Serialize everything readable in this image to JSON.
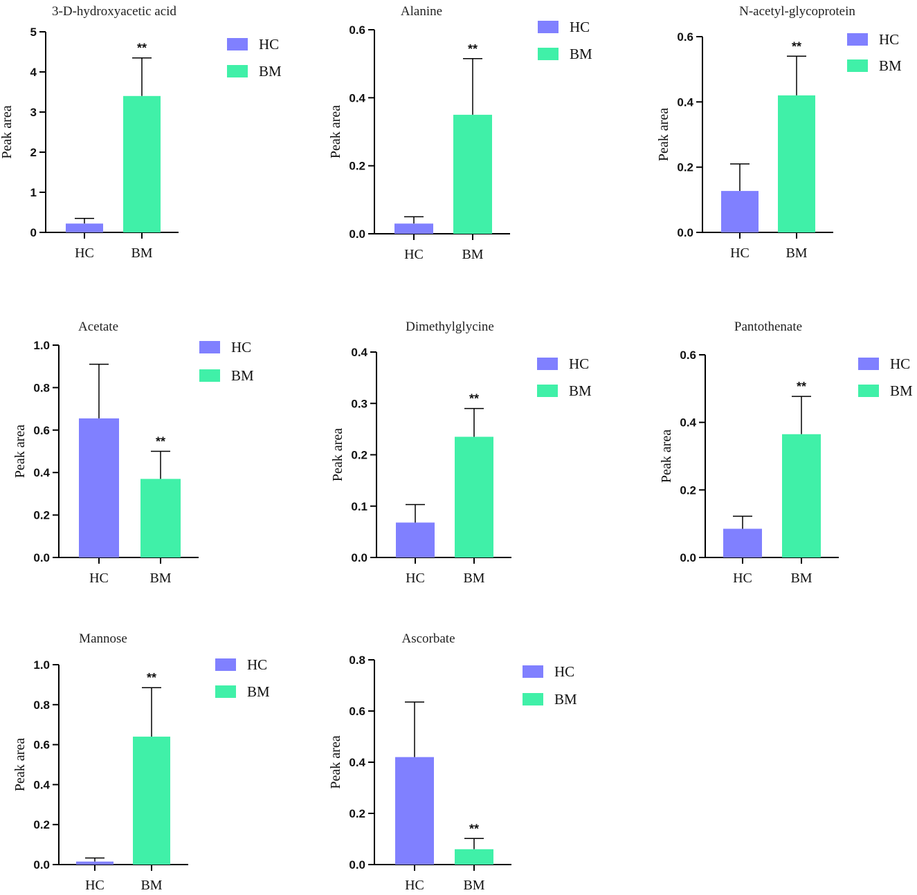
{
  "colors": {
    "HC": "#8080ff",
    "BM": "#40f0a8",
    "axis": "#000000"
  },
  "chart_data": [
    {
      "type": "bar",
      "title": "3-D-hydroxyacetic acid",
      "ylabel": "Peak area",
      "categories": [
        "HC",
        "BM"
      ],
      "values": [
        0.22,
        3.4
      ],
      "errors": [
        0.13,
        0.95
      ],
      "significance": [
        "",
        "**"
      ],
      "ylim": [
        0,
        5
      ],
      "yticks": [
        "0",
        "1",
        "2",
        "3",
        "4",
        "5"
      ],
      "legend": [
        "HC",
        "BM"
      ]
    },
    {
      "type": "bar",
      "title": "Alanine",
      "ylabel": "Peak area",
      "categories": [
        "HC",
        "BM"
      ],
      "values": [
        0.03,
        0.35
      ],
      "errors": [
        0.02,
        0.165
      ],
      "significance": [
        "",
        "**"
      ],
      "ylim": [
        0,
        0.6
      ],
      "yticks": [
        "0.0",
        "0.2",
        "0.4",
        "0.6"
      ],
      "legend": [
        "HC",
        "BM"
      ]
    },
    {
      "type": "bar",
      "title": "N-acetyl-glycoprotein",
      "ylabel": "Peak area",
      "categories": [
        "HC",
        "BM"
      ],
      "values": [
        0.127,
        0.42
      ],
      "errors": [
        0.083,
        0.12
      ],
      "significance": [
        "",
        "**"
      ],
      "ylim": [
        0,
        0.6
      ],
      "yticks": [
        "0.0",
        "0.2",
        "0.4",
        "0.6"
      ],
      "legend": [
        "HC",
        "BM"
      ]
    },
    {
      "type": "bar",
      "title": "Acetate",
      "ylabel": "Peak area",
      "categories": [
        "HC",
        "BM"
      ],
      "values": [
        0.655,
        0.37
      ],
      "errors": [
        0.255,
        0.13
      ],
      "significance": [
        "",
        "**"
      ],
      "ylim": [
        0,
        1.0
      ],
      "yticks": [
        "0.0",
        "0.2",
        "0.4",
        "0.6",
        "0.8",
        "1.0"
      ],
      "legend": [
        "HC",
        "BM"
      ]
    },
    {
      "type": "bar",
      "title": "Dimethylglycine",
      "ylabel": "Peak area",
      "categories": [
        "HC",
        "BM"
      ],
      "values": [
        0.068,
        0.235
      ],
      "errors": [
        0.035,
        0.055
      ],
      "significance": [
        "",
        "**"
      ],
      "ylim": [
        0,
        0.4
      ],
      "yticks": [
        "0.0",
        "0.1",
        "0.2",
        "0.3",
        "0.4"
      ],
      "legend": [
        "HC",
        "BM"
      ]
    },
    {
      "type": "bar",
      "title": "Pantothenate",
      "ylabel": "Peak area",
      "categories": [
        "HC",
        "BM"
      ],
      "values": [
        0.085,
        0.365
      ],
      "errors": [
        0.037,
        0.112
      ],
      "significance": [
        "",
        "**"
      ],
      "ylim": [
        0,
        0.6
      ],
      "yticks": [
        "0.0",
        "0.2",
        "0.4",
        "0.6"
      ],
      "legend": [
        "HC",
        "BM"
      ]
    },
    {
      "type": "bar",
      "title": "Mannose",
      "ylabel": "Peak area",
      "categories": [
        "HC",
        "BM"
      ],
      "values": [
        0.015,
        0.64
      ],
      "errors": [
        0.018,
        0.245
      ],
      "significance": [
        "",
        "**"
      ],
      "ylim": [
        0,
        1.0
      ],
      "yticks": [
        "0.0",
        "0.2",
        "0.4",
        "0.6",
        "0.8",
        "1.0"
      ],
      "legend": [
        "HC",
        "BM"
      ]
    },
    {
      "type": "bar",
      "title": "Ascorbate",
      "ylabel": "Peak area",
      "categories": [
        "HC",
        "BM"
      ],
      "values": [
        0.42,
        0.06
      ],
      "errors": [
        0.215,
        0.042
      ],
      "significance": [
        "",
        "**"
      ],
      "ylim": [
        0,
        0.8
      ],
      "yticks": [
        "0.0",
        "0.2",
        "0.4",
        "0.6",
        "0.8"
      ],
      "legend": [
        "HC",
        "BM"
      ]
    }
  ]
}
